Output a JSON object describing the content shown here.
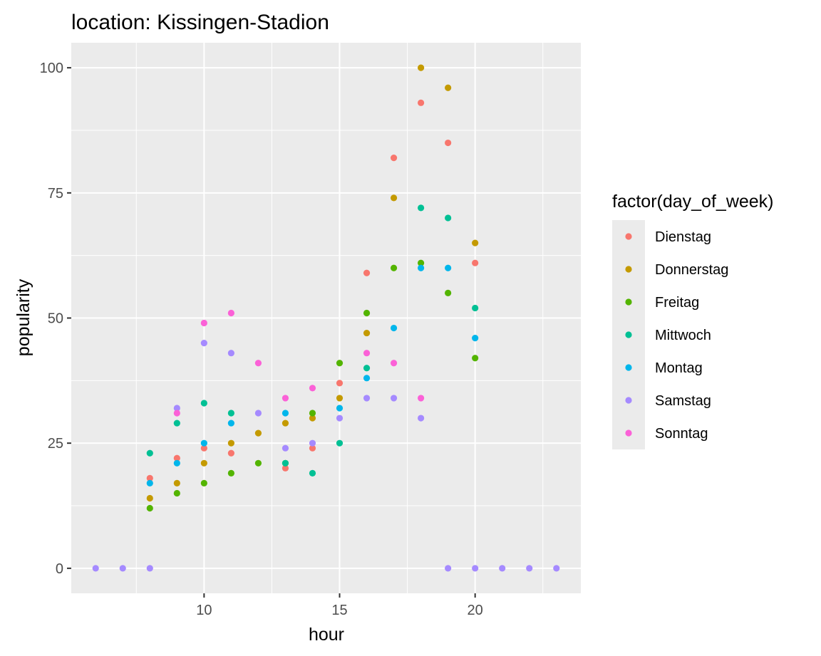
{
  "chart_data": {
    "type": "scatter",
    "title": "location: Kissingen-Stadion",
    "xlabel": "hour",
    "ylabel": "popularity",
    "xlim": [
      5.1,
      23.9
    ],
    "ylim": [
      -5,
      105
    ],
    "x_ticks": [
      10,
      15,
      20
    ],
    "y_ticks": [
      0,
      25,
      50,
      75,
      100
    ],
    "grid": true,
    "legend_title": "factor(day_of_week)",
    "legend_position": "right",
    "series": [
      {
        "name": "Dienstag",
        "color": "#F8766D",
        "points": [
          [
            8,
            18
          ],
          [
            9,
            22
          ],
          [
            10,
            24
          ],
          [
            11,
            23
          ],
          [
            13,
            20
          ],
          [
            14,
            24
          ],
          [
            15,
            37
          ],
          [
            16,
            59
          ],
          [
            17,
            82
          ],
          [
            18,
            93
          ],
          [
            19,
            85
          ],
          [
            20,
            61
          ]
        ]
      },
      {
        "name": "Donnerstag",
        "color": "#C49A00",
        "points": [
          [
            8,
            14
          ],
          [
            9,
            17
          ],
          [
            10,
            21
          ],
          [
            11,
            25
          ],
          [
            12,
            27
          ],
          [
            13,
            29
          ],
          [
            14,
            30
          ],
          [
            15,
            34
          ],
          [
            16,
            47
          ],
          [
            17,
            74
          ],
          [
            18,
            100
          ],
          [
            19,
            96
          ],
          [
            20,
            65
          ]
        ]
      },
      {
        "name": "Freitag",
        "color": "#53B400",
        "points": [
          [
            8,
            12
          ],
          [
            9,
            15
          ],
          [
            10,
            17
          ],
          [
            11,
            19
          ],
          [
            12,
            21
          ],
          [
            13,
            21
          ],
          [
            14,
            31
          ],
          [
            15,
            41
          ],
          [
            16,
            51
          ],
          [
            17,
            60
          ],
          [
            18,
            61
          ],
          [
            19,
            55
          ],
          [
            20,
            42
          ]
        ]
      },
      {
        "name": "Mittwoch",
        "color": "#00C094",
        "points": [
          [
            8,
            23
          ],
          [
            9,
            29
          ],
          [
            10,
            33
          ],
          [
            11,
            31
          ],
          [
            13,
            21
          ],
          [
            14,
            19
          ],
          [
            15,
            25
          ],
          [
            16,
            40
          ],
          [
            18,
            72
          ],
          [
            19,
            70
          ],
          [
            20,
            52
          ]
        ]
      },
      {
        "name": "Montag",
        "color": "#00B6EB",
        "points": [
          [
            8,
            17
          ],
          [
            9,
            21
          ],
          [
            10,
            25
          ],
          [
            11,
            29
          ],
          [
            13,
            31
          ],
          [
            15,
            32
          ],
          [
            16,
            38
          ],
          [
            17,
            48
          ],
          [
            18,
            60
          ],
          [
            19,
            60
          ],
          [
            20,
            46
          ]
        ]
      },
      {
        "name": "Samstag",
        "color": "#A58AFF",
        "points": [
          [
            6,
            0
          ],
          [
            7,
            0
          ],
          [
            8,
            0
          ],
          [
            9,
            32
          ],
          [
            10,
            45
          ],
          [
            11,
            43
          ],
          [
            12,
            31
          ],
          [
            13,
            24
          ],
          [
            14,
            25
          ],
          [
            15,
            30
          ],
          [
            16,
            34
          ],
          [
            17,
            34
          ],
          [
            18,
            30
          ],
          [
            19,
            0
          ],
          [
            20,
            0
          ],
          [
            21,
            0
          ],
          [
            22,
            0
          ],
          [
            23,
            0
          ]
        ]
      },
      {
        "name": "Sonntag",
        "color": "#FB61D7",
        "points": [
          [
            9,
            31
          ],
          [
            10,
            49
          ],
          [
            11,
            51
          ],
          [
            12,
            41
          ],
          [
            13,
            34
          ],
          [
            14,
            36
          ],
          [
            16,
            43
          ],
          [
            17,
            41
          ],
          [
            18,
            34
          ]
        ]
      }
    ]
  }
}
